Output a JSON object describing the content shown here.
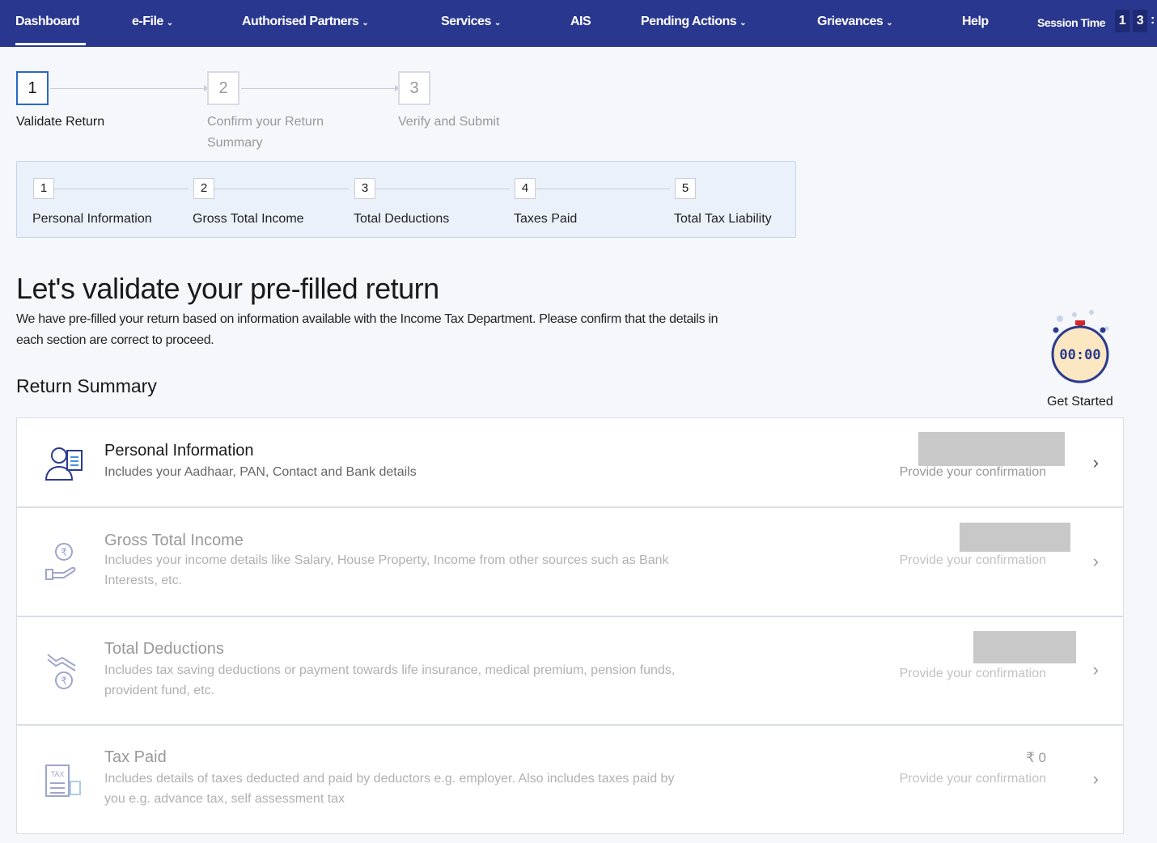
{
  "nav": {
    "items": [
      {
        "label": "Dashboard",
        "dropdown": false
      },
      {
        "label": "e-File",
        "dropdown": true
      },
      {
        "label": "Authorised Partners",
        "dropdown": true
      },
      {
        "label": "Services",
        "dropdown": true
      },
      {
        "label": "AIS",
        "dropdown": false
      },
      {
        "label": "Pending Actions",
        "dropdown": true
      },
      {
        "label": "Grievances",
        "dropdown": true
      },
      {
        "label": "Help",
        "dropdown": false
      }
    ],
    "active": "Dashboard",
    "session_label": "Session Time",
    "session_digits": [
      "1",
      "3"
    ],
    "session_sep": ":"
  },
  "steps": [
    {
      "num": "1",
      "label": "Validate Return",
      "active": true
    },
    {
      "num": "2",
      "label": "Confirm your Return Summary",
      "active": false
    },
    {
      "num": "3",
      "label": "Verify and Submit",
      "active": false
    }
  ],
  "substeps": [
    {
      "num": "1",
      "label": "Personal Information"
    },
    {
      "num": "2",
      "label": "Gross Total Income"
    },
    {
      "num": "3",
      "label": "Total Deductions"
    },
    {
      "num": "4",
      "label": "Taxes Paid"
    },
    {
      "num": "5",
      "label": "Total Tax Liability"
    }
  ],
  "heading": "Let's validate your pre-filled return",
  "description": "We have pre-filled your return based on information available with the Income Tax Department. Please confirm that the details in each section are correct to proceed.",
  "summary_title": "Return Summary",
  "timer": {
    "display": "00:00",
    "label": "Get Started"
  },
  "sections": [
    {
      "title": "Personal Information",
      "desc": "Includes your Aadhaar, PAN, Contact and Bank details",
      "status": "Provide your confirmation",
      "amount": "",
      "icon": "person-id-icon"
    },
    {
      "title": "Gross Total Income",
      "desc": "Includes your income details like Salary, House Property, Income from other sources such as Bank Interests, etc.",
      "status": "Provide your confirmation",
      "amount": "",
      "icon": "rupee-hand-icon"
    },
    {
      "title": "Total Deductions",
      "desc": "Includes tax saving deductions or payment towards life insurance, medical premium, pension funds, provident fund, etc.",
      "status": "Provide your confirmation",
      "amount": "",
      "icon": "rupee-down-icon"
    },
    {
      "title": "Tax Paid",
      "desc": "Includes details of taxes deducted and paid by deductors e.g. employer. Also includes taxes paid by you e.g. advance tax, self assessment tax",
      "status": "Provide your confirmation",
      "amount": "₹ 0",
      "icon": "tax-document-icon"
    }
  ]
}
